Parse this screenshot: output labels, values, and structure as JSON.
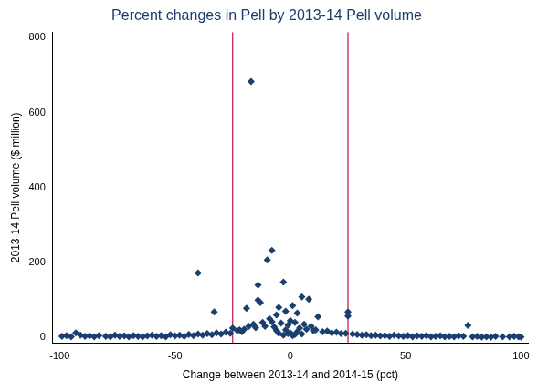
{
  "chart_data": {
    "type": "scatter",
    "title": "Percent changes in Pell by 2013-14 Pell volume",
    "x_label": "Change between 2013-14 and 2014-15 (pct)",
    "y_label": "2013-14 Pell volume ($ million)",
    "x": [
      -99,
      -97,
      -95,
      -93,
      -91,
      -89,
      -87,
      -85,
      -83,
      -80,
      -78,
      -76,
      -74,
      -72,
      -70,
      -68,
      -66,
      -64,
      -62,
      -60,
      -58,
      -56,
      -54,
      -52,
      -50,
      -48,
      -46,
      -44,
      -42,
      -40,
      -38,
      -36,
      -34,
      -32,
      -30,
      -28,
      -26,
      -25,
      -23,
      -22,
      -21,
      -20,
      -18,
      -16,
      -15,
      -12,
      -11,
      -9,
      -8,
      -7,
      -6,
      -5,
      -4,
      -3,
      -2,
      -1,
      0,
      1,
      2,
      3,
      4,
      5,
      6,
      7,
      8,
      9,
      10,
      11,
      12,
      14,
      16,
      18,
      20,
      22,
      24,
      25,
      25,
      27,
      29,
      31,
      33,
      35,
      37,
      39,
      41,
      43,
      45,
      47,
      49,
      51,
      53,
      55,
      57,
      59,
      61,
      63,
      65,
      67,
      69,
      71,
      73,
      75,
      77,
      79,
      81,
      83,
      85,
      87,
      89,
      92,
      95,
      97,
      99,
      100,
      -17,
      -8,
      -10,
      -40,
      -14,
      -14,
      -13,
      -33,
      -19,
      -6,
      -2,
      0,
      3,
      -1,
      2,
      1,
      -3,
      5,
      -5
    ],
    "values": [
      3,
      5,
      2,
      12,
      6,
      3,
      4,
      2,
      5,
      3,
      2,
      6,
      3,
      4,
      2,
      5,
      3,
      2,
      4,
      6,
      3,
      5,
      2,
      7,
      4,
      6,
      3,
      8,
      5,
      9,
      6,
      10,
      7,
      12,
      9,
      14,
      11,
      25,
      18,
      20,
      15,
      22,
      30,
      35,
      26,
      40,
      30,
      50,
      42,
      28,
      60,
      80,
      38,
      148,
      70,
      33,
      45,
      85,
      40,
      65,
      25,
      108,
      35,
      22,
      102,
      30,
      18,
      20,
      55,
      15,
      17,
      12,
      14,
      10,
      11,
      68,
      57,
      9,
      8,
      6,
      7,
      5,
      6,
      4,
      5,
      3,
      6,
      4,
      3,
      5,
      2,
      4,
      3,
      5,
      2,
      3,
      4,
      2,
      3,
      2,
      4,
      3,
      32,
      2,
      3,
      1,
      2,
      1,
      3,
      2,
      2,
      3,
      2,
      1,
      683,
      232,
      207,
      172,
      140,
      100,
      93,
      68,
      78,
      18,
      20,
      12,
      15,
      10,
      8,
      5,
      6,
      9,
      11
    ],
    "color": "#1a3f6f",
    "marker": "diamond",
    "xlim": [
      -103,
      103
    ],
    "xticks": [
      -100,
      -50,
      0,
      50,
      100
    ],
    "ylim": [
      -15,
      815
    ],
    "yticks": [
      0,
      200,
      400,
      600,
      800
    ],
    "vlines": [
      {
        "x": -25,
        "color": "#c0163f"
      },
      {
        "x": 25,
        "color": "#c0163f"
      }
    ],
    "grid": false
  }
}
